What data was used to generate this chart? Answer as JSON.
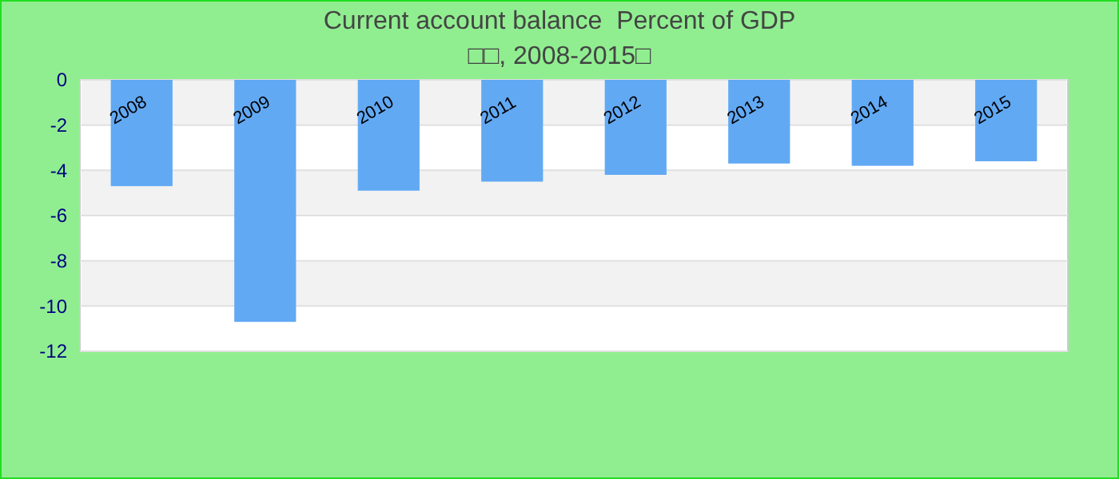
{
  "chart_data": {
    "type": "bar",
    "title": "Current account balance  Percent of GDP",
    "subtitle": "□□, 2008-2015□",
    "categories": [
      "2008",
      "2009",
      "2010",
      "2011",
      "2012",
      "2013",
      "2014",
      "2015"
    ],
    "values": [
      -4.7,
      -10.7,
      -4.9,
      -4.5,
      -4.2,
      -3.7,
      -3.8,
      -3.6
    ],
    "color": "#62a9f4",
    "ylim": [
      -12,
      0
    ],
    "yticks": [
      0,
      -2,
      -4,
      -6,
      -8,
      -10,
      -12
    ],
    "grid": "y"
  }
}
